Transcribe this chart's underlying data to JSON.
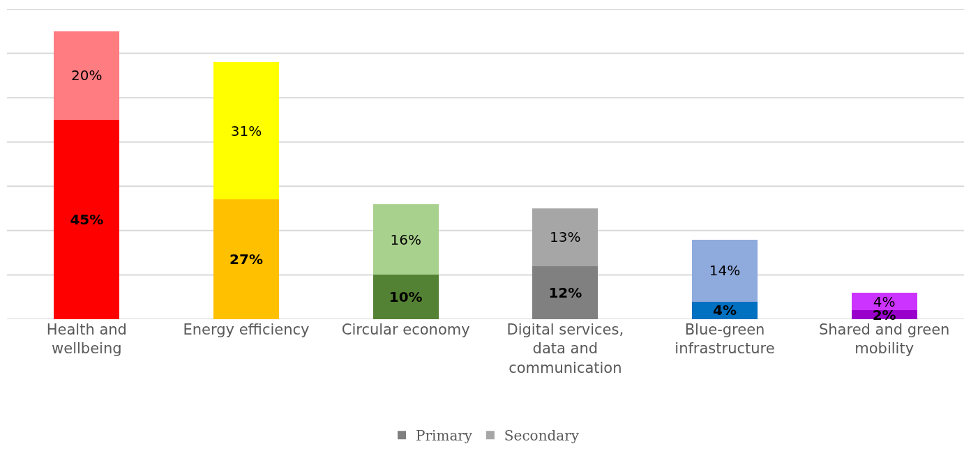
{
  "chart_data": {
    "type": "bar",
    "stacked": true,
    "categories": [
      "Health and wellbeing",
      "Energy efficiency",
      "Circular economy",
      "Digital services, data and communication",
      "Blue-green infrastructure",
      "Shared and green mobility"
    ],
    "series": [
      {
        "name": "Primary",
        "color": "#7f7f7f",
        "colors": [
          "#ff0000",
          "#ffc000",
          "#548235",
          "#808080",
          "#0070c0",
          "#9900cc"
        ],
        "values": [
          45,
          27,
          10,
          12,
          4,
          2
        ],
        "value_labels": [
          "45%",
          "27%",
          "10%",
          "12%",
          "4%",
          "2%"
        ]
      },
      {
        "name": "Secondary",
        "color": "#a6a6a6",
        "colors": [
          "#ff7c80",
          "#ffff00",
          "#a9d18e",
          "#a6a6a6",
          "#8faadc",
          "#cc33ff"
        ],
        "values": [
          20,
          31,
          16,
          13,
          14,
          4
        ],
        "value_labels": [
          "20%",
          "31%",
          "16%",
          "13%",
          "14%",
          "4%"
        ]
      }
    ],
    "ylim": [
      0,
      70
    ],
    "yticks": [
      {
        "value": 0,
        "label": null
      },
      {
        "value": 10,
        "label": null
      },
      {
        "value": 20,
        "label": null
      },
      {
        "value": 30,
        "label": null
      },
      {
        "value": 40,
        "label": null
      },
      {
        "value": 50,
        "label": null
      },
      {
        "value": 60,
        "label": null
      },
      {
        "value": 70,
        "label": null
      }
    ],
    "grid": "y",
    "legend": "bottom",
    "tick_labels": "x"
  }
}
